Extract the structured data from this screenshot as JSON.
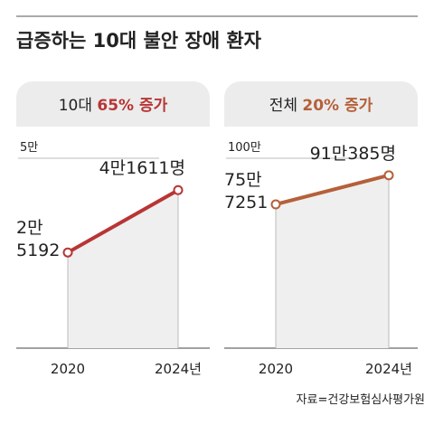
{
  "title": "급증하는 10대 불안 장애 환자",
  "source": "자료=건강보험심사평가원",
  "chart_data": [
    {
      "type": "line",
      "header_prefix": "10대",
      "header_highlight": "65% 증가",
      "categories": [
        "2020",
        "2024년"
      ],
      "series": [
        {
          "color": "#b83535",
          "values": [
            25192,
            41611
          ],
          "value_labels": [
            "2만\n5192",
            "4만1611명"
          ]
        }
      ],
      "ylim": [
        0,
        50000
      ],
      "yticks": [
        {
          "value": 50000,
          "label": "5만"
        }
      ],
      "grid": true
    },
    {
      "type": "line",
      "header_prefix": "전체",
      "header_highlight": "20% 증가",
      "categories": [
        "2020",
        "2024년"
      ],
      "series": [
        {
          "color": "#b5603a",
          "values": [
            757251,
            910385
          ],
          "value_labels": [
            "75만\n7251",
            "91만385명"
          ]
        }
      ],
      "ylim": [
        0,
        1000000
      ],
      "yticks": [
        {
          "value": 1000000,
          "label": "100만"
        }
      ],
      "grid": true
    }
  ]
}
